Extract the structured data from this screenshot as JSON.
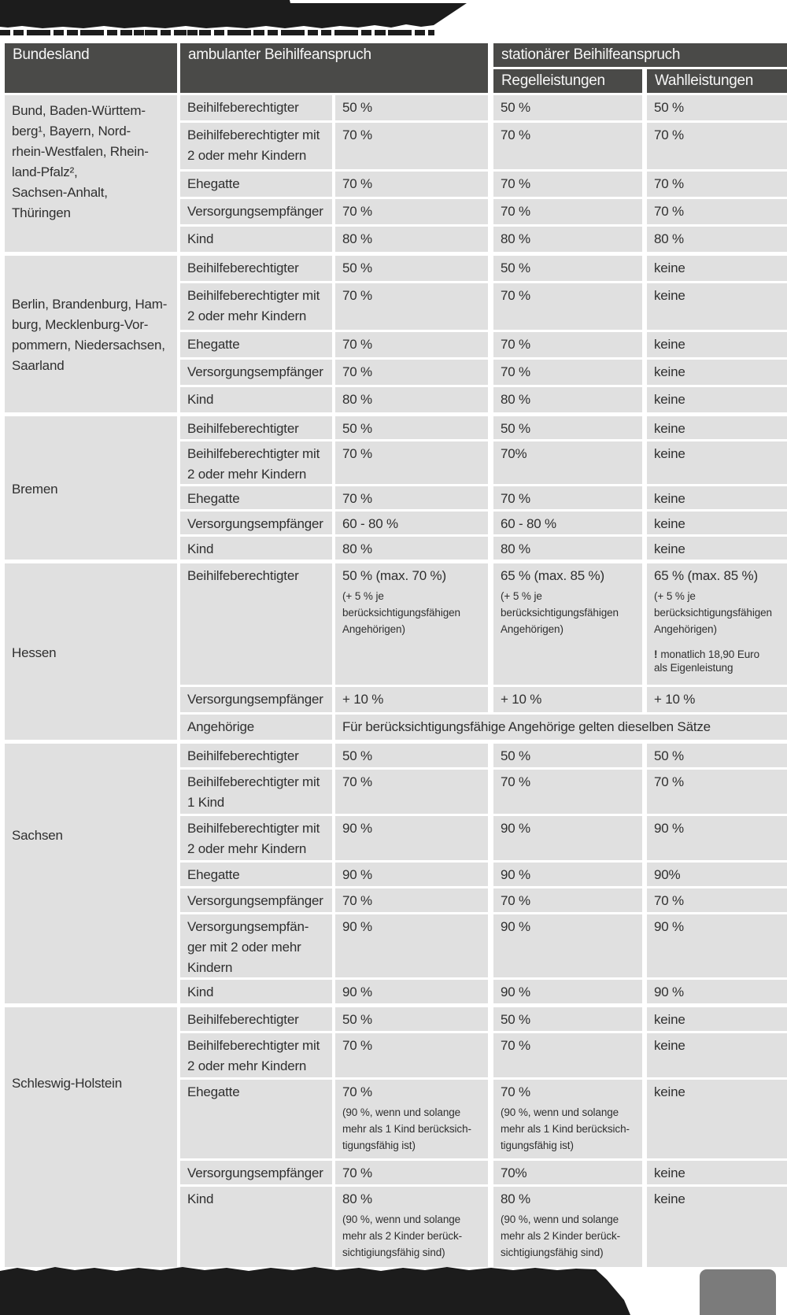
{
  "colors": {
    "scan_band": "#1c1c1c",
    "header_bg": "#4a4a48",
    "header_text": "#f7f7f7",
    "cell_bg": "#e0e0e0",
    "cell_text": "#2f2f2f",
    "gray_block": "#7b7b7b"
  },
  "table": {
    "header": {
      "bundesland": "Bundesland",
      "ambulant": "ambulanter Beihilfeanspruch",
      "stationaer": "stationärer Beihilfeanspruch",
      "regel": "Regelleistungen",
      "wahl": "Wahlleistungen"
    },
    "groups": [
      {
        "bundesland": "Bund, Baden-Württem-\nberg¹, Bayern, Nord-\nrhein-Westfalen, Rhein-\nland-Pfalz²,\nSachsen-Anhalt,\nThüringen",
        "rows": [
          {
            "category": "Beihilfeberechtigter",
            "ambulant": "50 %",
            "regel": "50 %",
            "wahl": "50 %"
          },
          {
            "category": "Beihilfeberechtigter mit\n2 oder mehr Kindern",
            "ambulant": "70 %",
            "regel": "70 %",
            "wahl": "70 %"
          },
          {
            "category": "Ehegatte",
            "ambulant": "70 %",
            "regel": "70 %",
            "wahl": "70 %"
          },
          {
            "category": "Versorgungsempfänger",
            "ambulant": "70 %",
            "regel": "70 %",
            "wahl": "70 %"
          },
          {
            "category": "Kind",
            "ambulant": "80 %",
            "regel": "80 %",
            "wahl": "80 %"
          }
        ]
      },
      {
        "bundesland": "Berlin, Brandenburg, Ham-\nburg, Mecklenburg-Vor-\npommern, Niedersachsen,\nSaarland",
        "rows": [
          {
            "category": "Beihilfeberechtigter",
            "ambulant": "50 %",
            "regel": "50 %",
            "wahl": "keine"
          },
          {
            "category": "Beihilfeberechtigter mit\n2 oder mehr Kindern",
            "ambulant": "70 %",
            "regel": "70 %",
            "wahl": "keine"
          },
          {
            "category": "Ehegatte",
            "ambulant": "70 %",
            "regel": "70 %",
            "wahl": "keine"
          },
          {
            "category": "Versorgungsempfänger",
            "ambulant": "70 %",
            "regel": "70 %",
            "wahl": "keine"
          },
          {
            "category": "Kind",
            "ambulant": "80 %",
            "regel": "80 %",
            "wahl": "keine"
          }
        ]
      },
      {
        "bundesland": "Bremen",
        "rows": [
          {
            "category": "Beihilfeberechtigter",
            "ambulant": "50 %",
            "regel": "50 %",
            "wahl": "keine"
          },
          {
            "category": "Beihilfeberechtigter mit\n2 oder mehr Kindern",
            "ambulant": "70 %",
            "regel": "70%",
            "wahl": "keine"
          },
          {
            "category": "Ehegatte",
            "ambulant": "70 %",
            "regel": "70 %",
            "wahl": "keine"
          },
          {
            "category": "Versorgungsempfänger",
            "ambulant": "60 - 80 %",
            "regel": "60 - 80 %",
            "wahl": "keine"
          },
          {
            "category": "Kind",
            "ambulant": "80 %",
            "regel": "80 %",
            "wahl": "keine"
          }
        ]
      },
      {
        "bundesland": "Hessen",
        "rows": [
          {
            "category": "Beihilfeberechtigter",
            "ambulant": "50 % (max. 70 %)",
            "ambulant_note": "(+ 5 % je\nberücksichtigungsfähigen\nAngehörigen)",
            "regel": "65 % (max. 85 %)",
            "regel_note": "(+ 5 % je\nberücksichtigungsfähigen\nAngehörigen)",
            "wahl": "65 % (max. 85 %)",
            "wahl_note": "(+ 5 % je\nberücksichtigungsfähigen\nAngehörigen)",
            "wahl_excl": "!",
            "wahl_extra": "monatlich 18,90 Euro\nals Eigenleistung"
          },
          {
            "category": "Versorgungsempfänger",
            "ambulant": "+ 10 %",
            "regel": "+ 10 %",
            "wahl": "+ 10 %"
          },
          {
            "category": "Angehörige",
            "span": "Für berücksichtigungsfähige Angehörige gelten dieselben Sätze"
          }
        ]
      },
      {
        "bundesland": "Sachsen",
        "rows": [
          {
            "category": "Beihilfeberechtigter",
            "ambulant": "50 %",
            "regel": "50 %",
            "wahl": "50 %"
          },
          {
            "category": "Beihilfeberechtigter mit\n1 Kind",
            "ambulant": "70 %",
            "regel": "70 %",
            "wahl": "70 %"
          },
          {
            "category": "Beihilfeberechtigter mit\n2 oder mehr Kindern",
            "ambulant": "90 %",
            "regel": "90 %",
            "wahl": "90 %"
          },
          {
            "category": "Ehegatte",
            "ambulant": "90 %",
            "regel": "90 %",
            "wahl": "90%"
          },
          {
            "category": "Versorgungsempfänger",
            "ambulant": "70 %",
            "regel": "70 %",
            "wahl": "70 %"
          },
          {
            "category": "Versorgungsempfän-\nger mit 2 oder mehr\nKindern",
            "ambulant": "90 %",
            "regel": "90 %",
            "wahl": "90 %"
          },
          {
            "category": "Kind",
            "ambulant": "90 %",
            "regel": "90 %",
            "wahl": "90 %"
          }
        ]
      },
      {
        "bundesland": "Schleswig-Holstein",
        "rows": [
          {
            "category": "Beihilfeberechtigter",
            "ambulant": "50 %",
            "regel": "50 %",
            "wahl": "keine"
          },
          {
            "category": "Beihilfeberechtigter mit\n2 oder mehr Kindern",
            "ambulant": "70 %",
            "regel": "70 %",
            "wahl": "keine"
          },
          {
            "category": "Ehegatte",
            "ambulant": "70 %",
            "ambulant_note": "(90 %, wenn und solange\nmehr als 1 Kind berücksich-\ntigungsfähig ist)",
            "regel": "70 %",
            "regel_note": "(90 %, wenn und solange\nmehr als 1 Kind berücksich-\ntigungsfähig ist)",
            "wahl": "keine"
          },
          {
            "category": "Versorgungsempfänger",
            "ambulant": "70 %",
            "regel": "70%",
            "wahl": "keine"
          },
          {
            "category": "Kind",
            "ambulant": "80 %",
            "ambulant_note": "(90 %, wenn und solange\nmehr als 2 Kinder berück-\nsichtigiungsfähig sind)",
            "regel": "80 %",
            "regel_note": "(90 %, wenn und solange\nmehr als 2 Kinder berück-\nsichtigiungsfähig sind)",
            "wahl": "keine"
          }
        ]
      }
    ]
  }
}
